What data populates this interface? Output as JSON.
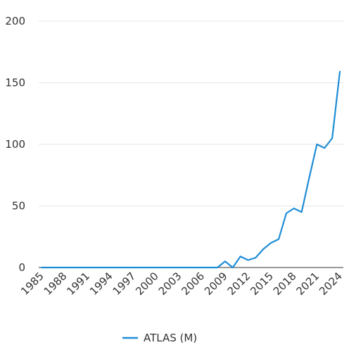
{
  "chart_data": {
    "type": "line",
    "title": "",
    "xlabel": "",
    "ylabel": "",
    "ylim": [
      0,
      200
    ],
    "yticks": [
      0,
      50,
      100,
      150,
      200
    ],
    "xtick_labels": [
      "1985",
      "1988",
      "1991",
      "1994",
      "1997",
      "2000",
      "2003",
      "2006",
      "2009",
      "2012",
      "2015",
      "2018",
      "2021",
      "2024"
    ],
    "grid": "horizontal",
    "legend": "bottom-center",
    "series": [
      {
        "name": "ATLAS (M)",
        "color": "#1f8dd6",
        "x": [
          1985,
          1986,
          1987,
          1988,
          1989,
          1990,
          1991,
          1992,
          1993,
          1994,
          1995,
          1996,
          1997,
          1998,
          1999,
          2000,
          2001,
          2002,
          2003,
          2004,
          2005,
          2006,
          2007,
          2008,
          2009,
          2010,
          2011,
          2012,
          2013,
          2014,
          2015,
          2016,
          2017,
          2018,
          2019,
          2020,
          2021,
          2022,
          2023,
          2024
        ],
        "values": [
          0,
          0,
          0,
          0,
          0,
          0,
          0,
          0,
          0,
          0,
          0,
          0,
          0,
          0,
          0,
          0,
          0,
          0,
          0,
          0,
          0,
          0,
          0,
          0,
          5,
          0,
          9,
          6,
          8,
          15,
          20,
          23,
          44,
          48,
          45,
          73,
          100,
          97,
          105,
          159
        ]
      }
    ]
  }
}
